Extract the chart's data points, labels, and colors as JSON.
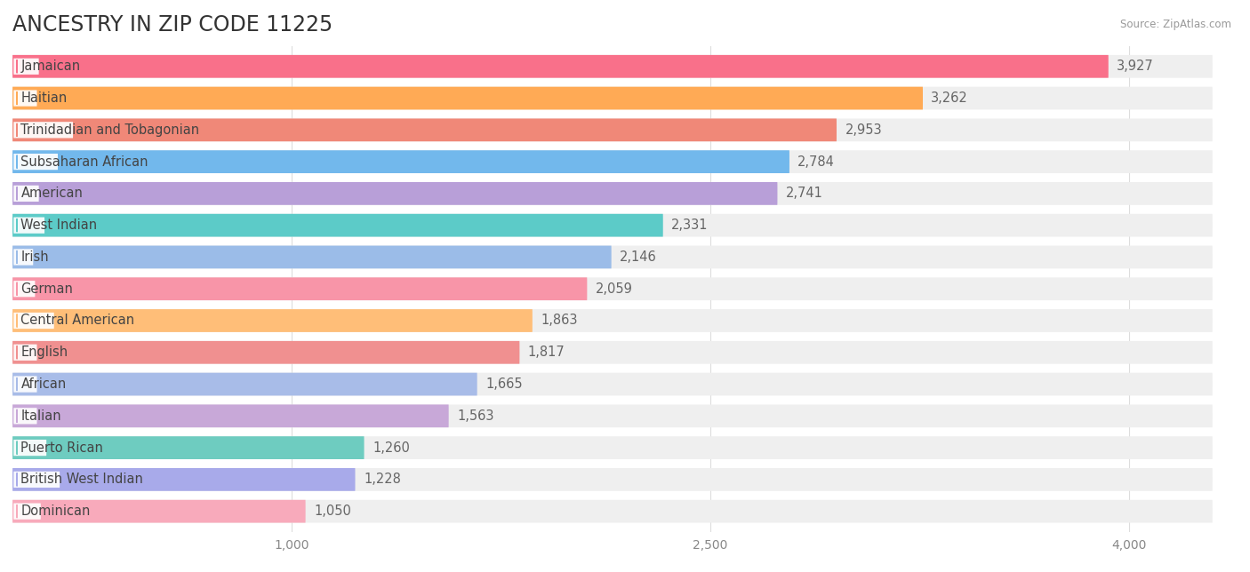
{
  "title": "ANCESTRY IN ZIP CODE 11225",
  "source": "Source: ZipAtlas.com",
  "categories": [
    "Jamaican",
    "Haitian",
    "Trinidadian and Tobagonian",
    "Subsaharan African",
    "American",
    "West Indian",
    "Irish",
    "German",
    "Central American",
    "English",
    "African",
    "Italian",
    "Puerto Rican",
    "British West Indian",
    "Dominican"
  ],
  "values": [
    3927,
    3262,
    2953,
    2784,
    2741,
    2331,
    2146,
    2059,
    1863,
    1817,
    1665,
    1563,
    1260,
    1228,
    1050
  ],
  "bar_colors": [
    "#F9708A",
    "#FFAA55",
    "#F08878",
    "#72B8EC",
    "#B89FD8",
    "#5CCBC8",
    "#9BBCE8",
    "#F895A8",
    "#FFBE78",
    "#F09090",
    "#A8BCE8",
    "#C8A8D8",
    "#6ECCC0",
    "#A8AAEA",
    "#F8AABB"
  ],
  "xlim_min": 0,
  "xlim_max": 4300,
  "xticks": [
    1000,
    2500,
    4000
  ],
  "title_fontsize": 17,
  "label_fontsize": 10.5,
  "value_fontsize": 10.5,
  "background_color": "#FFFFFF",
  "bar_background_color": "#EFEFEF",
  "row_bg_color": "#F5F5F5"
}
